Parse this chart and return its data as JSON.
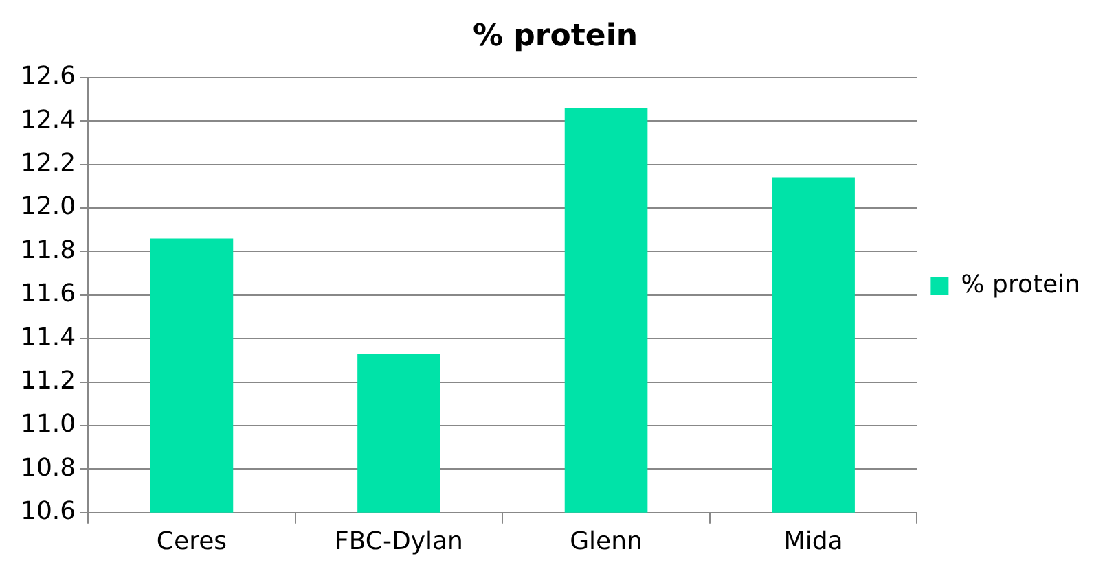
{
  "chart_data": {
    "type": "bar",
    "title": "% protein",
    "categories": [
      "Ceres",
      "FBC-Dylan",
      "Glenn",
      "Mida"
    ],
    "series": [
      {
        "name": "% protein",
        "color": "#00e3a8",
        "values": [
          11.86,
          11.33,
          12.46,
          12.14
        ]
      }
    ],
    "ylim": [
      10.6,
      12.6
    ],
    "yticks": [
      10.6,
      10.8,
      {
        "value": 11,
        "label": "11.0"
      },
      11.2,
      11.4,
      11.6,
      11.8,
      {
        "value": 12,
        "label": "12.0"
      },
      12.2,
      12.4,
      12.6
    ],
    "grid": "y",
    "legend": "right"
  }
}
